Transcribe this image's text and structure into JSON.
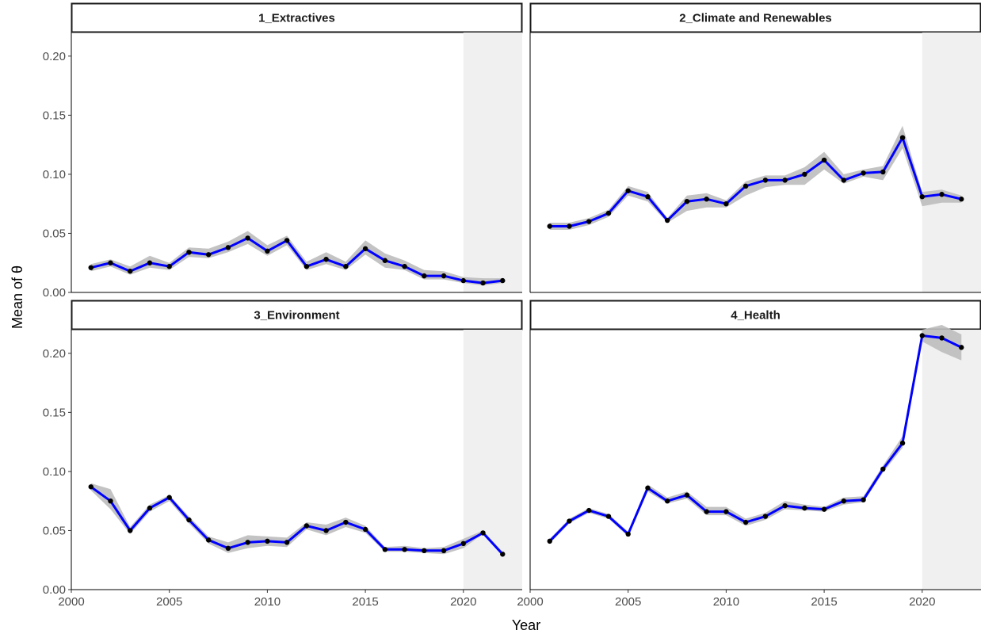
{
  "chart_data": {
    "type": "line",
    "x_label": "Year",
    "y_label": "Mean of θ",
    "x_ticks": [
      2000,
      2005,
      2010,
      2015,
      2020
    ],
    "y_ticks": [
      0.0,
      0.05,
      0.1,
      0.15,
      0.2
    ],
    "y_tick_labels": [
      "0.00",
      "0.05",
      "0.10",
      "0.15",
      "0.20"
    ],
    "xlim": [
      2000,
      2023
    ],
    "ylim": [
      0,
      0.22
    ],
    "shaded_region": {
      "x_start": 2020,
      "x_end": 2023
    },
    "colors": {
      "line": "#0000ff",
      "point": "#000000",
      "ribbon": "#bdbdbd",
      "shade": "#f0f0f0"
    },
    "years": [
      2001,
      2002,
      2003,
      2004,
      2005,
      2006,
      2007,
      2008,
      2009,
      2010,
      2011,
      2012,
      2013,
      2014,
      2015,
      2016,
      2017,
      2018,
      2019,
      2020,
      2021,
      2022
    ],
    "panels": [
      {
        "title": "1_Extractives",
        "values": [
          0.021,
          0.025,
          0.018,
          0.025,
          0.022,
          0.034,
          0.032,
          0.038,
          0.046,
          0.035,
          0.044,
          0.022,
          0.028,
          0.022,
          0.037,
          0.027,
          0.022,
          0.014,
          0.014,
          0.01,
          0.008,
          0.01
        ],
        "lower": [
          0.018,
          0.022,
          0.015,
          0.021,
          0.019,
          0.03,
          0.029,
          0.034,
          0.041,
          0.031,
          0.04,
          0.019,
          0.024,
          0.019,
          0.032,
          0.021,
          0.019,
          0.011,
          0.011,
          0.008,
          0.006,
          0.008
        ],
        "upper": [
          0.024,
          0.028,
          0.022,
          0.031,
          0.025,
          0.038,
          0.037,
          0.043,
          0.052,
          0.04,
          0.048,
          0.026,
          0.034,
          0.026,
          0.044,
          0.033,
          0.027,
          0.019,
          0.018,
          0.013,
          0.012,
          0.012
        ]
      },
      {
        "title": "2_Climate and Renewables",
        "values": [
          0.056,
          0.056,
          0.06,
          0.067,
          0.086,
          0.081,
          0.061,
          0.077,
          0.079,
          0.075,
          0.09,
          0.095,
          0.095,
          0.1,
          0.112,
          0.095,
          0.101,
          0.102,
          0.131,
          0.081,
          0.083,
          0.079
        ],
        "lower": [
          0.053,
          0.053,
          0.057,
          0.064,
          0.082,
          0.077,
          0.059,
          0.069,
          0.072,
          0.072,
          0.082,
          0.089,
          0.091,
          0.091,
          0.104,
          0.092,
          0.098,
          0.095,
          0.122,
          0.073,
          0.076,
          0.076
        ],
        "upper": [
          0.059,
          0.059,
          0.063,
          0.07,
          0.09,
          0.085,
          0.063,
          0.082,
          0.084,
          0.078,
          0.094,
          0.099,
          0.099,
          0.106,
          0.119,
          0.1,
          0.104,
          0.107,
          0.141,
          0.085,
          0.087,
          0.082
        ]
      },
      {
        "title": "3_Environment",
        "values": [
          0.087,
          0.075,
          0.05,
          0.069,
          0.078,
          0.059,
          0.042,
          0.035,
          0.04,
          0.041,
          0.04,
          0.054,
          0.05,
          0.057,
          0.051,
          0.034,
          0.034,
          0.033,
          0.033,
          0.039,
          0.048,
          0.03
        ],
        "lower": [
          0.084,
          0.068,
          0.047,
          0.066,
          0.075,
          0.056,
          0.039,
          0.031,
          0.035,
          0.037,
          0.036,
          0.051,
          0.046,
          0.053,
          0.048,
          0.032,
          0.032,
          0.031,
          0.03,
          0.035,
          0.047,
          0.029
        ],
        "upper": [
          0.09,
          0.085,
          0.053,
          0.072,
          0.08,
          0.062,
          0.045,
          0.04,
          0.046,
          0.045,
          0.044,
          0.057,
          0.055,
          0.061,
          0.054,
          0.036,
          0.037,
          0.035,
          0.036,
          0.043,
          0.05,
          0.032
        ]
      },
      {
        "title": "4_Health",
        "values": [
          0.041,
          0.058,
          0.067,
          0.062,
          0.047,
          0.086,
          0.075,
          0.08,
          0.066,
          0.066,
          0.057,
          0.062,
          0.071,
          0.069,
          0.068,
          0.075,
          0.076,
          0.102,
          0.124,
          0.215,
          0.213,
          0.205
        ],
        "lower": [
          0.039,
          0.056,
          0.065,
          0.06,
          0.045,
          0.083,
          0.073,
          0.077,
          0.063,
          0.063,
          0.054,
          0.059,
          0.068,
          0.067,
          0.066,
          0.072,
          0.074,
          0.099,
          0.12,
          0.21,
          0.201,
          0.194
        ],
        "upper": [
          0.043,
          0.06,
          0.069,
          0.064,
          0.049,
          0.089,
          0.078,
          0.083,
          0.07,
          0.07,
          0.06,
          0.065,
          0.075,
          0.072,
          0.07,
          0.078,
          0.079,
          0.105,
          0.13,
          0.22,
          0.224,
          0.216
        ]
      }
    ]
  }
}
